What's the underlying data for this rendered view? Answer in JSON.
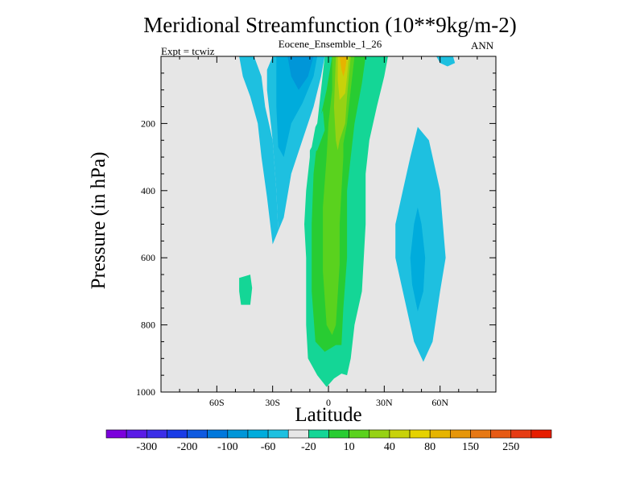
{
  "chart_data": {
    "type": "heatmap",
    "title": "Meridional Streamfunction (10**9kg/m-2)",
    "subtitle": "Eocene_Ensemble_1_26",
    "left_string": "Expt = tcwiz",
    "right_string": "ANN",
    "xlabel": "Latitude",
    "ylabel": "Pressure (in hPa)",
    "x_ticks": [
      "60S",
      "30S",
      "0",
      "30N",
      "60N"
    ],
    "x_tick_values": [
      -60,
      -30,
      0,
      30,
      60
    ],
    "xlim": [
      -90,
      90
    ],
    "y_ticks": [
      "200",
      "400",
      "600",
      "800",
      "1000"
    ],
    "y_tick_values": [
      200,
      400,
      600,
      800,
      1000
    ],
    "ylim": [
      0,
      1000
    ],
    "background_color": "#e6e6e6",
    "colorbar": {
      "labels": [
        "-300",
        "-200",
        "-100",
        "-60",
        "-20",
        "10",
        "40",
        "80",
        "150",
        "250"
      ],
      "colors": [
        "#7b00dc",
        "#5a1be6",
        "#3c2ee8",
        "#1a3ce6",
        "#0f5ae0",
        "#0078dc",
        "#0096d8",
        "#00acdc",
        "#1ec0e0",
        "#e6e6e6",
        "#14d696",
        "#28cc32",
        "#5ad21e",
        "#96d214",
        "#c8d20a",
        "#e6d200",
        "#e6b400",
        "#e6960a",
        "#e67814",
        "#e65a14",
        "#e63c14",
        "#e61e00"
      ]
    },
    "regions": [
      {
        "level": "-20 to 10",
        "color": "#1ec0e0",
        "points": [
          [
            -48,
            0
          ],
          [
            -40,
            0
          ],
          [
            -36,
            60
          ],
          [
            -34,
            150
          ],
          [
            -30,
            250
          ],
          [
            -28,
            400
          ],
          [
            -27,
            520
          ],
          [
            -30,
            560
          ],
          [
            -33,
            420
          ],
          [
            -36,
            300
          ],
          [
            -38,
            200
          ],
          [
            -42,
            120
          ],
          [
            -46,
            60
          ]
        ]
      },
      {
        "level": "-20 to 10",
        "color": "#1ec0e0",
        "points": [
          [
            -30,
            0
          ],
          [
            -2,
            0
          ],
          [
            -4,
            60
          ],
          [
            -8,
            150
          ],
          [
            -14,
            250
          ],
          [
            -20,
            350
          ],
          [
            -24,
            480
          ],
          [
            -27,
            520
          ],
          [
            -28,
            400
          ],
          [
            -30,
            250
          ],
          [
            -33,
            100
          ],
          [
            -33,
            40
          ]
        ]
      },
      {
        "level": "-60 to -20",
        "color": "#00acdc",
        "points": [
          [
            -28,
            0
          ],
          [
            -6,
            0
          ],
          [
            -8,
            60
          ],
          [
            -14,
            140
          ],
          [
            -20,
            200
          ],
          [
            -24,
            300
          ],
          [
            -27,
            270
          ],
          [
            -28,
            150
          ]
        ]
      },
      {
        "level": "-100 to -60",
        "color": "#0096d8",
        "points": [
          [
            -22,
            0
          ],
          [
            -8,
            0
          ],
          [
            -11,
            60
          ],
          [
            -16,
            100
          ],
          [
            -20,
            60
          ]
        ]
      },
      {
        "level": "-100 to -60",
        "color": "#0096d8",
        "points": [
          [
            -16,
            0
          ],
          [
            -10,
            0
          ],
          [
            -12,
            40
          ],
          [
            -15,
            40
          ]
        ]
      },
      {
        "level": "-20 to 10",
        "color": "#1ec0e0",
        "points": [
          [
            36,
            500
          ],
          [
            40,
            400
          ],
          [
            44,
            300
          ],
          [
            48,
            210
          ],
          [
            54,
            250
          ],
          [
            60,
            400
          ],
          [
            63,
            600
          ],
          [
            60,
            700
          ],
          [
            56,
            850
          ],
          [
            51,
            910
          ],
          [
            46,
            850
          ],
          [
            40,
            700
          ],
          [
            36,
            600
          ]
        ]
      },
      {
        "level": "-60 to -20",
        "color": "#00acdc",
        "points": [
          [
            46,
            500
          ],
          [
            48,
            450
          ],
          [
            50,
            500
          ],
          [
            52,
            600
          ],
          [
            51,
            700
          ],
          [
            48,
            760
          ],
          [
            45,
            680
          ],
          [
            44,
            600
          ]
        ]
      },
      {
        "level": "-20 to 10",
        "color": "#1ec0e0",
        "points": [
          [
            58,
            0
          ],
          [
            67,
            0
          ],
          [
            68,
            20
          ],
          [
            64,
            30
          ],
          [
            60,
            20
          ]
        ]
      },
      {
        "level": "10 to 40",
        "color": "#14d696",
        "points": [
          [
            -48,
            660
          ],
          [
            -42,
            650
          ],
          [
            -41,
            690
          ],
          [
            -42,
            740
          ],
          [
            -47,
            740
          ],
          [
            -48,
            700
          ]
        ]
      },
      {
        "level": "10 to 40",
        "color": "#14d696",
        "points": [
          [
            -2,
            0
          ],
          [
            32,
            0
          ],
          [
            30,
            60
          ],
          [
            26,
            150
          ],
          [
            22,
            250
          ],
          [
            20,
            350
          ],
          [
            20,
            500
          ],
          [
            18,
            700
          ],
          [
            14,
            800
          ],
          [
            12,
            900
          ],
          [
            10,
            950
          ],
          [
            7,
            945
          ],
          [
            3,
            960
          ],
          [
            -1,
            985
          ],
          [
            -6,
            950
          ],
          [
            -11,
            900
          ],
          [
            -12,
            800
          ],
          [
            -12,
            600
          ],
          [
            -13,
            500
          ],
          [
            -12,
            400
          ],
          [
            -10,
            300
          ],
          [
            -10,
            240
          ],
          [
            -8,
            220
          ],
          [
            -6,
            200
          ],
          [
            -4,
            100
          ]
        ]
      },
      {
        "level": "40 to 80",
        "color": "#28cc32",
        "points": [
          [
            2,
            0
          ],
          [
            20,
            0
          ],
          [
            18,
            80
          ],
          [
            14,
            200
          ],
          [
            12,
            300
          ],
          [
            10,
            400
          ],
          [
            10,
            600
          ],
          [
            8,
            750
          ],
          [
            7,
            860
          ],
          [
            4,
            860
          ],
          [
            -2,
            880
          ],
          [
            -7,
            850
          ],
          [
            -9,
            700
          ],
          [
            -9,
            500
          ],
          [
            -8,
            350
          ],
          [
            -5,
            200
          ],
          [
            -1,
            100
          ]
        ]
      },
      {
        "level": "80 to 120",
        "color": "#5ad21e",
        "points": [
          [
            2,
            0
          ],
          [
            14,
            0
          ],
          [
            12,
            100
          ],
          [
            10,
            200
          ],
          [
            8,
            260
          ],
          [
            8,
            300
          ],
          [
            6,
            500
          ],
          [
            6,
            620
          ],
          [
            4,
            800
          ],
          [
            2,
            830
          ],
          [
            -1,
            800
          ],
          [
            -3,
            640
          ],
          [
            -3,
            450
          ],
          [
            -1,
            300
          ],
          [
            0,
            200
          ],
          [
            2,
            100
          ]
        ]
      },
      {
        "level": "120 to 150",
        "color": "#96d214",
        "points": [
          [
            4,
            0
          ],
          [
            12,
            0
          ],
          [
            11,
            60
          ],
          [
            10,
            120
          ],
          [
            9,
            200
          ],
          [
            6,
            250
          ],
          [
            5,
            280
          ],
          [
            4,
            250
          ],
          [
            3,
            150
          ]
        ]
      },
      {
        "level": "150 to 200",
        "color": "#c8d20a",
        "points": [
          [
            5,
            0
          ],
          [
            11,
            0
          ],
          [
            10,
            60
          ],
          [
            9,
            110
          ],
          [
            6,
            130
          ],
          [
            5,
            70
          ]
        ]
      },
      {
        "level": "200 to 250",
        "color": "#e6b400",
        "points": [
          [
            6,
            0
          ],
          [
            10,
            0
          ],
          [
            9,
            40
          ],
          [
            8,
            60
          ],
          [
            7,
            40
          ]
        ]
      },
      {
        "level": "10 to 40",
        "color": "#14d696",
        "points": [
          [
            -6,
            200
          ],
          [
            -3,
            160
          ],
          [
            -2,
            220
          ],
          [
            -6,
            280
          ],
          [
            -9,
            290
          ],
          [
            -9,
            240
          ]
        ]
      },
      {
        "level": "-20 to 10",
        "color": "#e6e6e6",
        "points": [
          [
            -9,
            190
          ],
          [
            -6,
            180
          ],
          [
            -9,
            270
          ],
          [
            -12,
            300
          ],
          [
            -12,
            240
          ]
        ]
      }
    ]
  }
}
